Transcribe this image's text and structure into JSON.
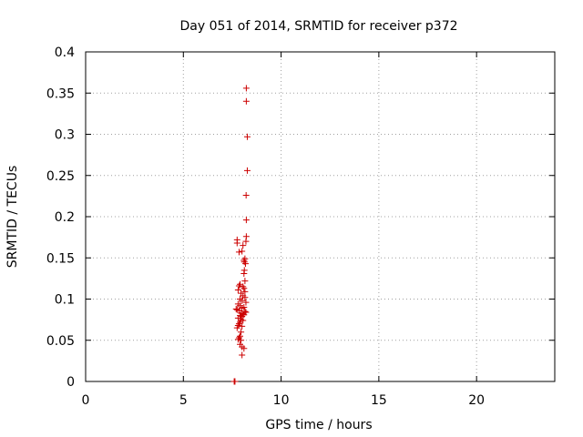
{
  "chart_data": {
    "type": "scatter",
    "title": "Day 051 of 2014, SRMTID for receiver p372",
    "xlabel": "GPS time / hours",
    "ylabel": "SRMTID / TECUs",
    "xlim": [
      0,
      24
    ],
    "ylim": [
      0,
      0.4
    ],
    "x_ticks": [
      "0",
      "5",
      "10",
      "15",
      "20"
    ],
    "y_ticks": [
      "0",
      "0.05",
      "0.1",
      "0.15",
      "0.2",
      "0.25",
      "0.3",
      "0.35",
      "0.4"
    ],
    "grid": true,
    "marker": "+",
    "color": "#cc0000",
    "series": [
      {
        "points": [
          [
            7.6,
            0.0
          ],
          [
            7.62,
            0.0
          ],
          [
            7.64,
            0.0
          ],
          [
            8.22,
            0.356
          ],
          [
            8.22,
            0.34
          ],
          [
            8.27,
            0.297
          ],
          [
            8.27,
            0.256
          ],
          [
            8.21,
            0.226
          ],
          [
            8.22,
            0.196
          ],
          [
            8.22,
            0.176
          ],
          [
            8.2,
            0.17
          ],
          [
            7.75,
            0.172
          ],
          [
            7.75,
            0.168
          ],
          [
            8.05,
            0.165
          ],
          [
            8.0,
            0.158
          ],
          [
            7.85,
            0.157
          ],
          [
            8.15,
            0.149
          ],
          [
            8.1,
            0.147
          ],
          [
            8.12,
            0.145
          ],
          [
            8.18,
            0.143
          ],
          [
            8.12,
            0.135
          ],
          [
            8.1,
            0.131
          ],
          [
            8.15,
            0.122
          ],
          [
            7.9,
            0.118
          ],
          [
            7.85,
            0.116
          ],
          [
            8.05,
            0.115
          ],
          [
            8.1,
            0.113
          ],
          [
            7.8,
            0.111
          ],
          [
            8.15,
            0.109
          ],
          [
            7.95,
            0.107
          ],
          [
            8.05,
            0.104
          ],
          [
            8.15,
            0.102
          ],
          [
            7.9,
            0.1
          ],
          [
            8.0,
            0.098
          ],
          [
            8.2,
            0.096
          ],
          [
            7.8,
            0.094
          ],
          [
            7.9,
            0.092
          ],
          [
            8.1,
            0.09
          ],
          [
            8.0,
            0.089
          ],
          [
            7.7,
            0.088
          ],
          [
            7.75,
            0.087
          ],
          [
            7.85,
            0.086
          ],
          [
            8.15,
            0.085
          ],
          [
            8.2,
            0.084
          ],
          [
            7.95,
            0.083
          ],
          [
            8.05,
            0.082
          ],
          [
            8.1,
            0.081
          ],
          [
            7.9,
            0.08
          ],
          [
            8.0,
            0.079
          ],
          [
            7.8,
            0.077
          ],
          [
            7.95,
            0.075
          ],
          [
            8.05,
            0.074
          ],
          [
            7.9,
            0.072
          ],
          [
            7.85,
            0.07
          ],
          [
            7.8,
            0.068
          ],
          [
            8.0,
            0.067
          ],
          [
            7.75,
            0.065
          ],
          [
            7.95,
            0.06
          ],
          [
            7.9,
            0.055
          ],
          [
            7.85,
            0.053
          ],
          [
            7.8,
            0.051
          ],
          [
            7.95,
            0.05
          ],
          [
            7.9,
            0.045
          ],
          [
            8.0,
            0.042
          ],
          [
            8.1,
            0.04
          ],
          [
            8.0,
            0.032
          ]
        ]
      }
    ]
  }
}
